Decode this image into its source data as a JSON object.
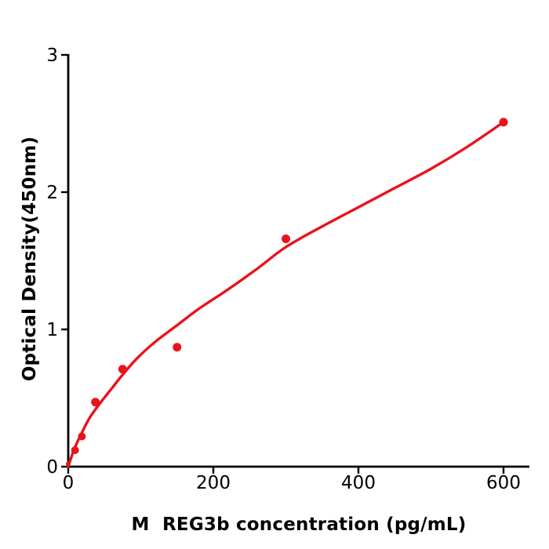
{
  "figure": {
    "background": "#ffffff",
    "accent_color": "#e8131b",
    "axis_color": "#000000",
    "text_color": "#000000"
  },
  "chart_data": {
    "type": "scatter",
    "title": "",
    "xlabel": "M  REG3b concentration (pg/mL)",
    "ylabel": "Optical Density(450nm)",
    "xlim": [
      0,
      636
    ],
    "ylim": [
      0,
      3
    ],
    "x_ticks": [
      0,
      200,
      400,
      600
    ],
    "y_ticks": [
      0,
      1,
      2,
      3
    ],
    "grid": false,
    "legend": "none",
    "point_color": "#e8131b",
    "line_color": "#e8131b",
    "marker_radii_px": [
      3,
      5,
      5,
      5.5,
      5.5,
      5.5,
      5.5,
      5.5
    ],
    "series": [
      {
        "name": "standard-points",
        "type": "scatter",
        "x": [
          0,
          9.375,
          18.75,
          37.5,
          75,
          150,
          300,
          600
        ],
        "y": [
          0.02,
          0.12,
          0.22,
          0.47,
          0.71,
          0.87,
          1.66,
          2.51
        ]
      },
      {
        "name": "fit-curve",
        "type": "line",
        "points": [
          [
            0,
            0
          ],
          [
            5,
            0.08
          ],
          [
            10,
            0.15
          ],
          [
            20,
            0.26
          ],
          [
            30,
            0.36
          ],
          [
            45,
            0.47
          ],
          [
            60,
            0.57
          ],
          [
            75,
            0.67
          ],
          [
            95,
            0.79
          ],
          [
            120,
            0.91
          ],
          [
            150,
            1.03
          ],
          [
            180,
            1.15
          ],
          [
            220,
            1.29
          ],
          [
            260,
            1.44
          ],
          [
            300,
            1.6
          ],
          [
            350,
            1.75
          ],
          [
            400,
            1.89
          ],
          [
            450,
            2.03
          ],
          [
            500,
            2.17
          ],
          [
            550,
            2.33
          ],
          [
            600,
            2.51
          ]
        ]
      }
    ]
  }
}
